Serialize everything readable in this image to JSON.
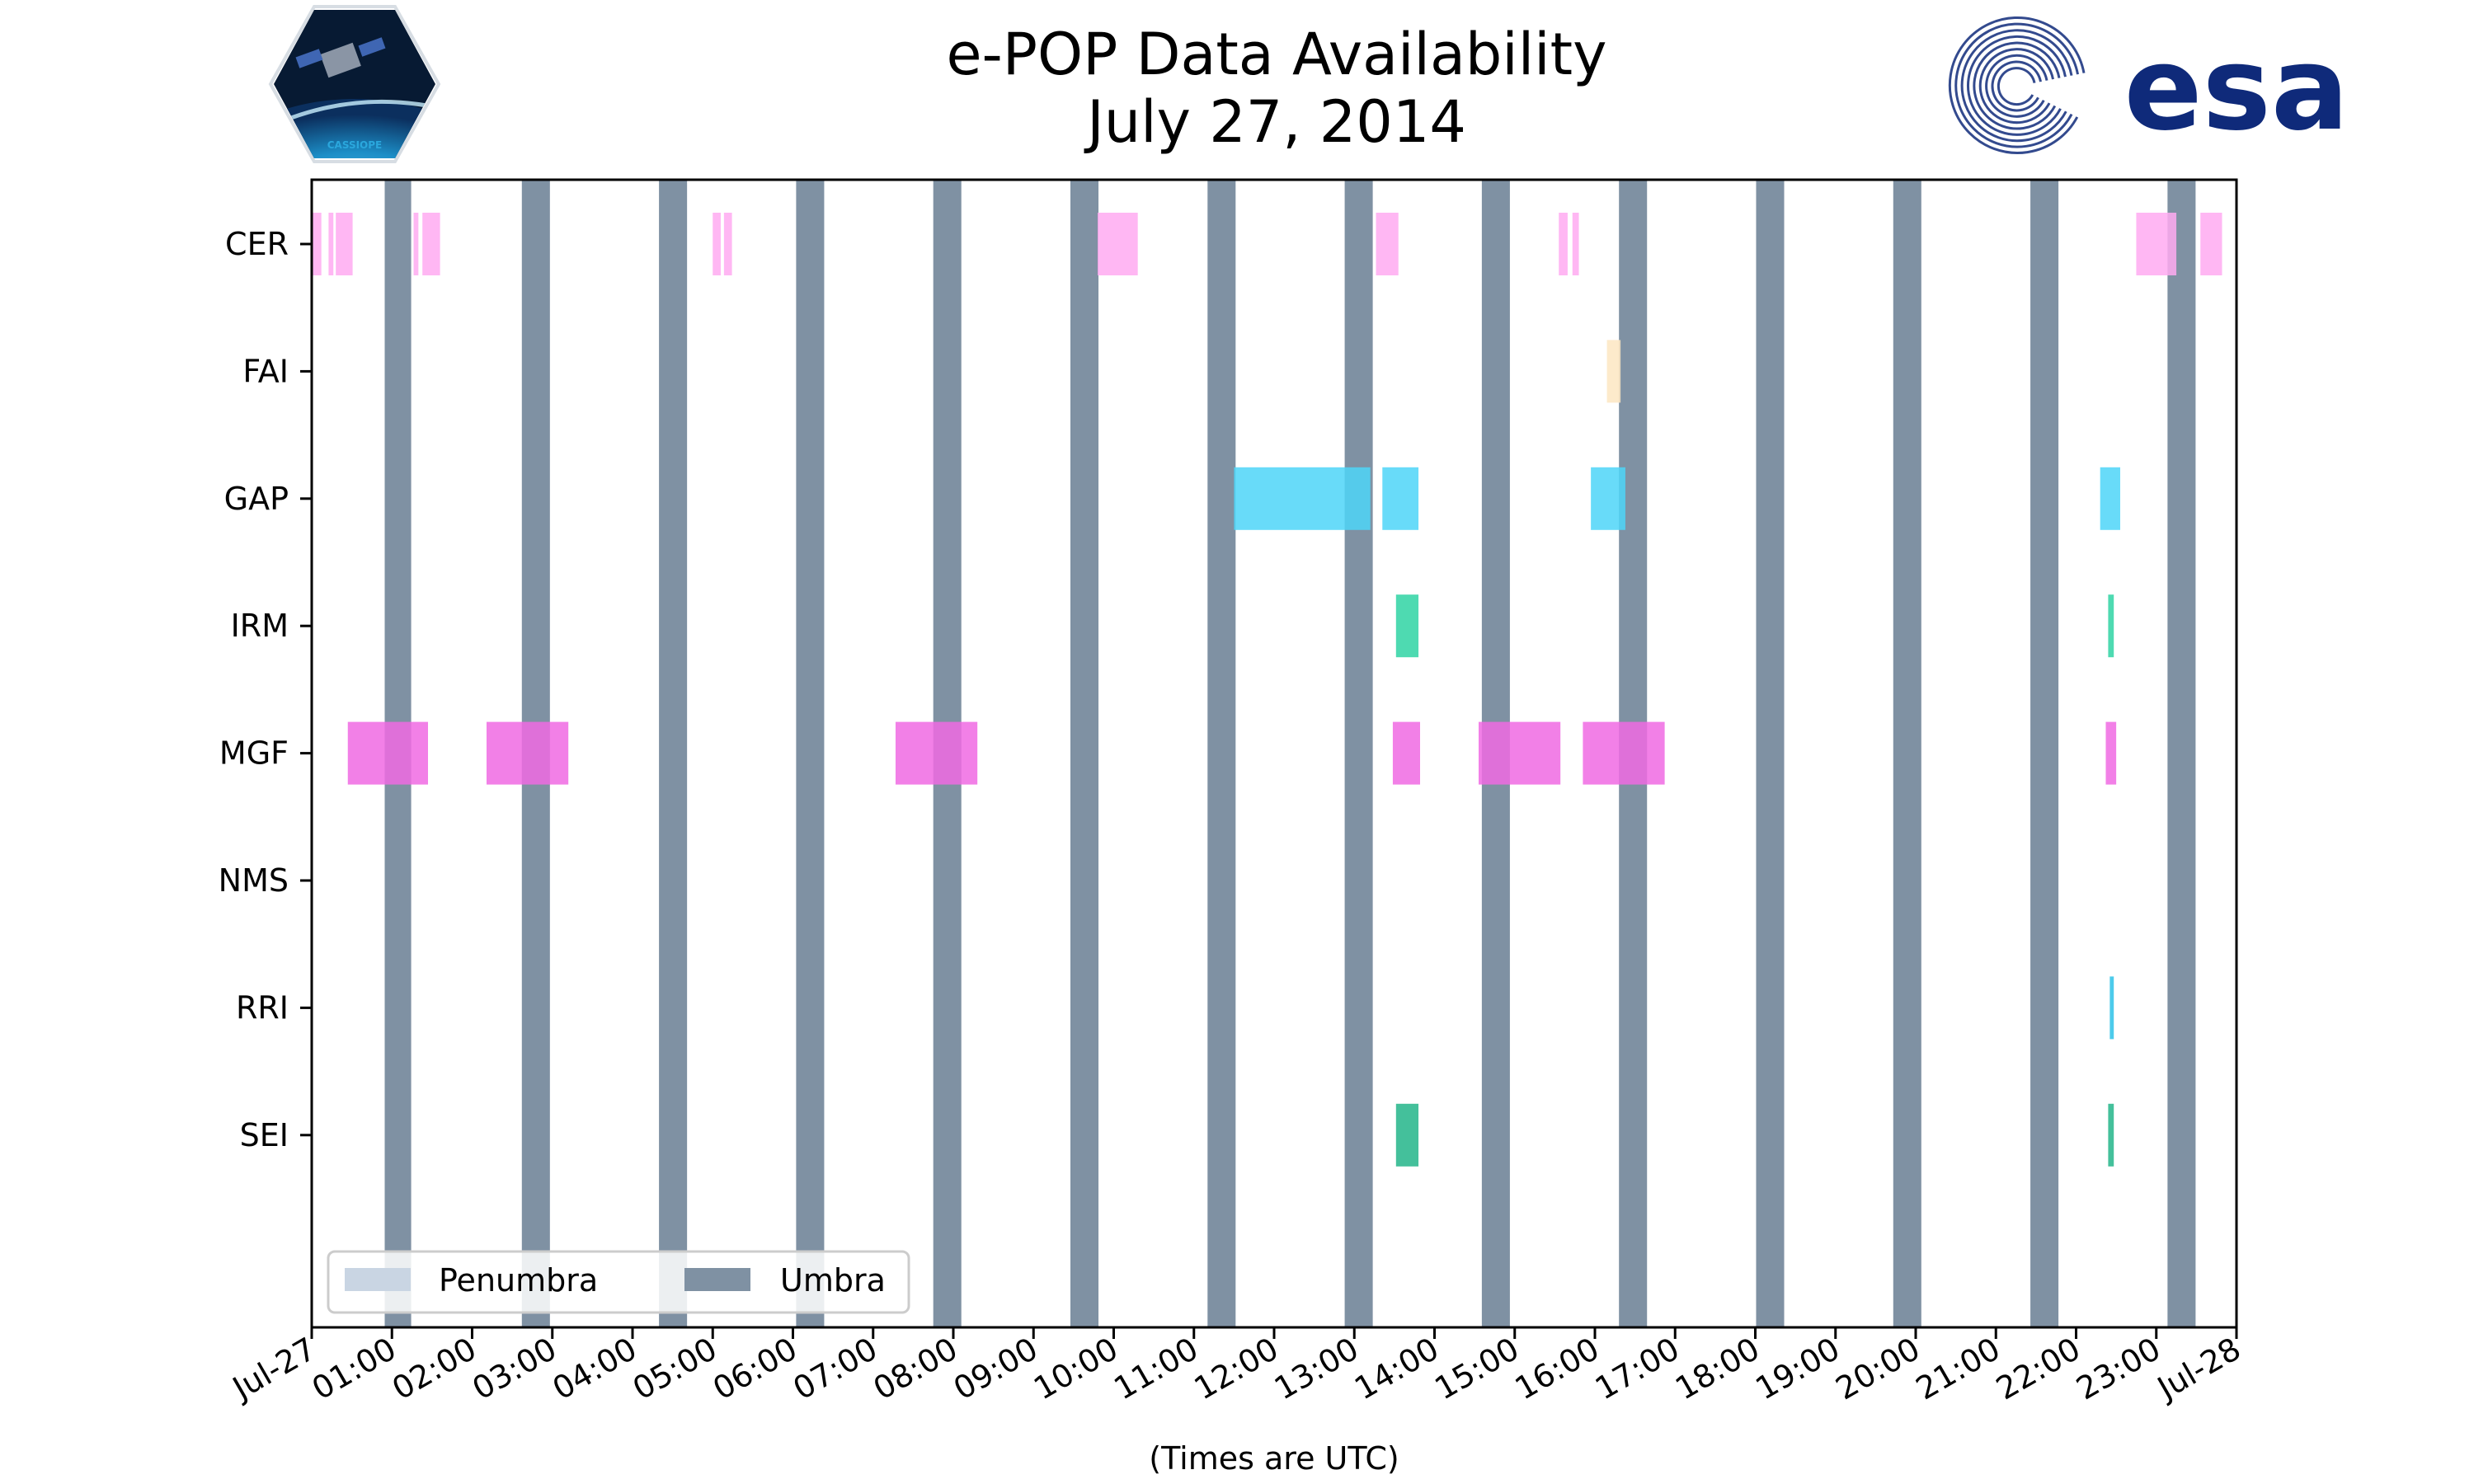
{
  "colors": {
    "umbra": "#7f91a3",
    "penumbra": "#c9d5e3",
    "CER": "#ffaaf1",
    "FAI": "#fde6c2",
    "GAP": "#4dd5f8",
    "IRM": "#2fd4a3",
    "MGF": "#f06ae3",
    "NMS": "#9a9a9a",
    "RRI": "#2ec2e8",
    "SEI": "#23b589",
    "esa_blue": "#0f2a7a"
  },
  "logos": {
    "mission_logo_text": "CASSIOPE",
    "agency_logo_text": "esa"
  },
  "chart_data": {
    "type": "timeline",
    "title": [
      "e-POP Data Availability",
      "July 27, 2014"
    ],
    "xlabel": "(Times are UTC)",
    "ylabel": "",
    "x_range_hours": [
      0,
      24
    ],
    "x_ticks": [
      "Jul-27",
      "01:00",
      "02:00",
      "03:00",
      "04:00",
      "05:00",
      "06:00",
      "07:00",
      "08:00",
      "09:00",
      "10:00",
      "11:00",
      "12:00",
      "13:00",
      "14:00",
      "15:00",
      "16:00",
      "17:00",
      "18:00",
      "19:00",
      "20:00",
      "21:00",
      "22:00",
      "23:00",
      "Jul-28"
    ],
    "categories": [
      "CER",
      "FAI",
      "GAP",
      "IRM",
      "MGF",
      "NMS",
      "RRI",
      "SEI"
    ],
    "legend": {
      "placement": "lower-left",
      "entries": [
        "Penumbra",
        "Umbra"
      ]
    },
    "umbra_intervals": [
      [
        0.91,
        1.24
      ],
      [
        2.62,
        2.97
      ],
      [
        4.33,
        4.68
      ],
      [
        6.04,
        6.39
      ],
      [
        7.75,
        8.1
      ],
      [
        9.46,
        9.81
      ],
      [
        11.17,
        11.52
      ],
      [
        12.88,
        13.23
      ],
      [
        14.59,
        14.94
      ],
      [
        16.3,
        16.65
      ],
      [
        18.01,
        18.36
      ],
      [
        19.72,
        20.07
      ],
      [
        21.43,
        21.78
      ],
      [
        23.14,
        23.49
      ]
    ],
    "series": [
      {
        "name": "CER",
        "intervals": [
          [
            0.0,
            0.12
          ],
          [
            0.21,
            0.27
          ],
          [
            0.3,
            0.51
          ],
          [
            1.27,
            1.33
          ],
          [
            1.38,
            1.6
          ],
          [
            5.0,
            5.1
          ],
          [
            5.14,
            5.24
          ],
          [
            9.8,
            10.3
          ],
          [
            13.27,
            13.55
          ],
          [
            15.55,
            15.66
          ],
          [
            15.72,
            15.8
          ],
          [
            22.75,
            23.25
          ],
          [
            23.55,
            23.82
          ]
        ]
      },
      {
        "name": "FAI",
        "intervals": [
          [
            16.15,
            16.32
          ]
        ]
      },
      {
        "name": "GAP",
        "intervals": [
          [
            11.5,
            13.2
          ],
          [
            13.35,
            13.8
          ],
          [
            15.95,
            16.38
          ],
          [
            22.3,
            22.55
          ]
        ]
      },
      {
        "name": "IRM",
        "intervals": [
          [
            13.52,
            13.8
          ],
          [
            22.4,
            22.47
          ]
        ]
      },
      {
        "name": "MGF",
        "intervals": [
          [
            0.45,
            1.45
          ],
          [
            2.18,
            3.2
          ],
          [
            7.28,
            8.3
          ],
          [
            13.48,
            13.82
          ],
          [
            14.55,
            15.57
          ],
          [
            15.85,
            16.87
          ],
          [
            22.37,
            22.5
          ]
        ]
      },
      {
        "name": "NMS",
        "intervals": []
      },
      {
        "name": "RRI",
        "intervals": [
          [
            22.42,
            22.47
          ]
        ]
      },
      {
        "name": "SEI",
        "intervals": [
          [
            13.52,
            13.8
          ],
          [
            22.4,
            22.47
          ]
        ]
      }
    ]
  }
}
